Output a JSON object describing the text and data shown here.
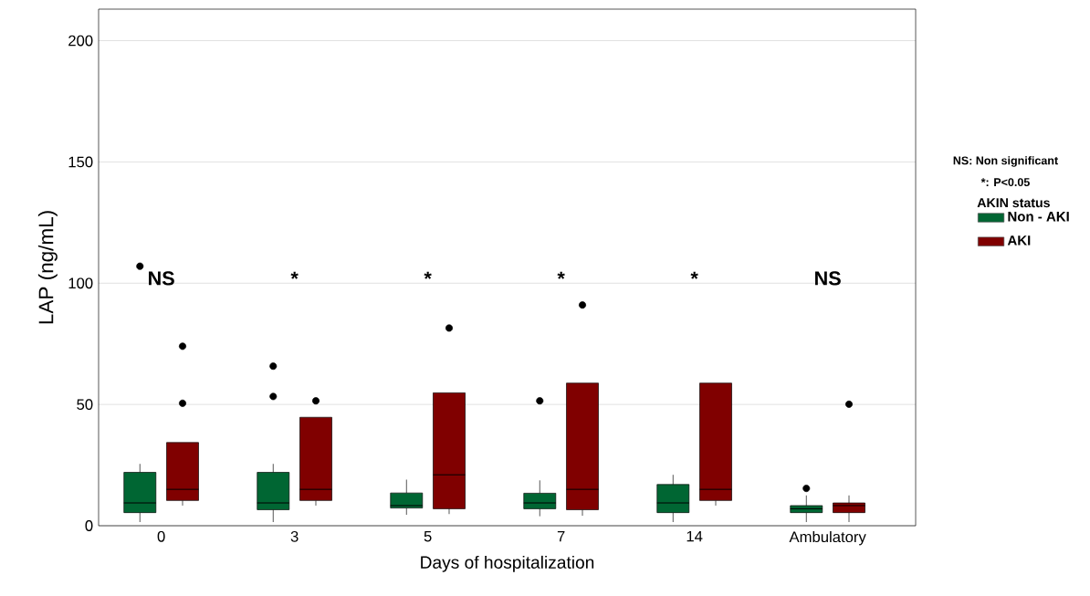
{
  "chart_data": {
    "type": "box",
    "xlabel": "Days of hospitalization",
    "ylabel": "LAP (ng/mL)",
    "legend_title": "AKIN status",
    "legend": "right",
    "grid": "y",
    "categories": [
      "0",
      "3",
      "5",
      "7",
      "14",
      "Ambulatory"
    ],
    "ylim": [
      0,
      213
    ],
    "yticks": [
      0,
      50,
      100,
      150,
      200
    ],
    "series": [
      {
        "name": "Non - AKI",
        "color": "#006633",
        "boxes": [
          {
            "low": 1.5,
            "q1": 5.4,
            "median": 9.4,
            "q3": 22,
            "high": 25.5,
            "outliers": [
              107
            ]
          },
          {
            "low": 1.5,
            "q1": 6.6,
            "median": 9.4,
            "q3": 22,
            "high": 25.5,
            "outliers": [
              65.8,
              53.3
            ]
          },
          {
            "low": 4.5,
            "q1": 7.3,
            "median": 8.3,
            "q3": 13.5,
            "high": 19
          },
          {
            "low": 3.9,
            "q1": 7,
            "median": 9.4,
            "q3": 13.4,
            "high": 18.7,
            "outliers": [
              51.5
            ]
          },
          {
            "low": 1.5,
            "q1": 5.4,
            "median": 9.4,
            "q3": 17,
            "high": 21
          },
          {
            "low": 1.5,
            "q1": 5.4,
            "median": 7,
            "q3": 8.3,
            "high": 12.5,
            "outliers": [
              15.4
            ]
          }
        ]
      },
      {
        "name": "AKI",
        "color": "#800000",
        "boxes": [
          {
            "low": 8.3,
            "q1": 10.4,
            "median": 15,
            "q3": 34.3,
            "high": 34.3,
            "outliers": [
              74,
              50.5
            ]
          },
          {
            "low": 8.3,
            "q1": 10.4,
            "median": 15,
            "q3": 44.7,
            "high": 44.7,
            "outliers": [
              51.5
            ]
          },
          {
            "low": 4.8,
            "q1": 7,
            "median": 21,
            "q3": 54.8,
            "high": 54.8,
            "outliers": [
              81.5
            ]
          },
          {
            "low": 4.1,
            "q1": 6.6,
            "median": 15,
            "q3": 58.8,
            "high": 58.8,
            "outliers": [
              91
            ]
          },
          {
            "low": 8.3,
            "q1": 10.4,
            "median": 15,
            "q3": 58.8,
            "high": 58.8
          },
          {
            "low": 1.5,
            "q1": 5.4,
            "median": 8.3,
            "q3": 9.4,
            "high": 12.5,
            "outliers": [
              50.1
            ]
          }
        ]
      }
    ],
    "annotations": [
      "NS",
      "*",
      "*",
      "*",
      "*",
      "NS",
      "NS: Non significant",
      "*: P<0.05"
    ]
  }
}
